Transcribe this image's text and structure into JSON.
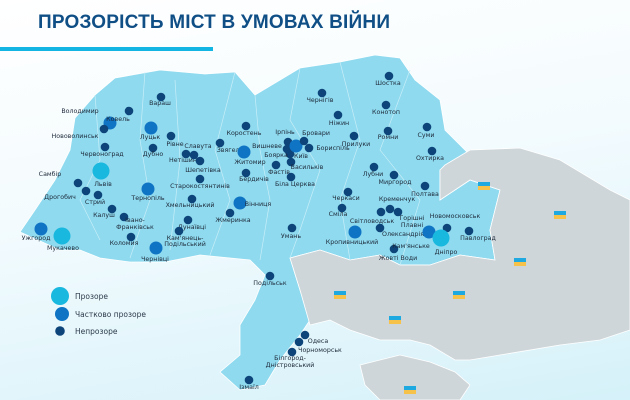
{
  "title": "ПРОЗОРІСТЬ МІСТ В УМОВАХ ВІЙНИ",
  "colors": {
    "transparent": "#19b8de",
    "partial": "#0f74c4",
    "opaque": "#0d4479",
    "territory": "#8fdaef",
    "occupied": "#cfd6d9",
    "title": "#0f4f86",
    "accent": "#13b6e2"
  },
  "legend": [
    {
      "status": "transparent",
      "label": "Прозоре"
    },
    {
      "status": "partial",
      "label": "Частково прозоре"
    },
    {
      "status": "opaque",
      "label": "Непрозоре"
    }
  ],
  "cities": [
    {
      "name": "Володимир",
      "status": "partial"
    },
    {
      "name": "Нововолинськ",
      "status": "opaque"
    },
    {
      "name": "Ковель",
      "status": "opaque"
    },
    {
      "name": "Вараш",
      "status": "opaque"
    },
    {
      "name": "Луцьк",
      "status": "partial"
    },
    {
      "name": "Рівне",
      "status": "opaque"
    },
    {
      "name": "Червоноград",
      "status": "opaque"
    },
    {
      "name": "Дубно",
      "status": "opaque"
    },
    {
      "name": "Нетішин",
      "status": "opaque"
    },
    {
      "name": "Славута",
      "status": "opaque"
    },
    {
      "name": "Шепетівка",
      "status": "opaque"
    },
    {
      "name": "Звягель",
      "status": "opaque"
    },
    {
      "name": "Старокостянтинів",
      "status": "opaque"
    },
    {
      "name": "Львів",
      "status": "transparent"
    },
    {
      "name": "Самбір",
      "status": "opaque"
    },
    {
      "name": "Дрогобич",
      "status": "opaque"
    },
    {
      "name": "Стрий",
      "status": "opaque"
    },
    {
      "name": "Тернопіль",
      "status": "partial"
    },
    {
      "name": "Калуш",
      "status": "opaque"
    },
    {
      "name": "Івано-Франківськ",
      "status": "opaque"
    },
    {
      "name": "Хмельницький",
      "status": "opaque"
    },
    {
      "name": "Дунаївці",
      "status": "opaque"
    },
    {
      "name": "Кам'янець-Подільський",
      "status": "opaque"
    },
    {
      "name": "Коломия",
      "status": "opaque"
    },
    {
      "name": "Чернівці",
      "status": "partial"
    },
    {
      "name": "Ужгород",
      "status": "partial"
    },
    {
      "name": "Мукачево",
      "status": "transparent"
    },
    {
      "name": "Жмеринка",
      "status": "opaque"
    },
    {
      "name": "Вінниця",
      "status": "partial"
    },
    {
      "name": "Бердичів",
      "status": "opaque"
    },
    {
      "name": "Житомир",
      "status": "partial"
    },
    {
      "name": "Коростень",
      "status": "opaque"
    },
    {
      "name": "Ірпінь",
      "status": "opaque"
    },
    {
      "name": "Вишневе",
      "status": "opaque"
    },
    {
      "name": "Боярка",
      "status": "opaque"
    },
    {
      "name": "Київ",
      "status": "partial"
    },
    {
      "name": "Бровари",
      "status": "opaque"
    },
    {
      "name": "Бориспіль",
      "status": "opaque"
    },
    {
      "name": "Фастів",
      "status": "opaque"
    },
    {
      "name": "Васильків",
      "status": "opaque"
    },
    {
      "name": "Біла Церква",
      "status": "opaque"
    },
    {
      "name": "Чернігів",
      "status": "opaque"
    },
    {
      "name": "Ніжин",
      "status": "opaque"
    },
    {
      "name": "Прилуки",
      "status": "opaque"
    },
    {
      "name": "Шостка",
      "status": "opaque"
    },
    {
      "name": "Конотоп",
      "status": "opaque"
    },
    {
      "name": "Ромни",
      "status": "opaque"
    },
    {
      "name": "Суми",
      "status": "opaque"
    },
    {
      "name": "Охтирка",
      "status": "opaque"
    },
    {
      "name": "Лубни",
      "status": "opaque"
    },
    {
      "name": "Миргород",
      "status": "opaque"
    },
    {
      "name": "Полтава",
      "status": "opaque"
    },
    {
      "name": "Черкаси",
      "status": "opaque"
    },
    {
      "name": "Світловодськ",
      "status": "opaque"
    },
    {
      "name": "Кременчук",
      "status": "opaque"
    },
    {
      "name": "Горішні Плавні",
      "status": "opaque"
    },
    {
      "name": "Сміла",
      "status": "opaque"
    },
    {
      "name": "Умань",
      "status": "opaque"
    },
    {
      "name": "Кропивницький",
      "status": "partial"
    },
    {
      "name": "Олександрія",
      "status": "opaque"
    },
    {
      "name": "Жовті Води",
      "status": "opaque"
    },
    {
      "name": "Новомосковськ",
      "status": "opaque"
    },
    {
      "name": "Кам'янське",
      "status": "partial"
    },
    {
      "name": "Дніпро",
      "status": "transparent"
    },
    {
      "name": "Павлоград",
      "status": "opaque"
    },
    {
      "name": "Подільськ",
      "status": "opaque"
    },
    {
      "name": "Одеса",
      "status": "opaque"
    },
    {
      "name": "Чорноморськ",
      "status": "opaque"
    },
    {
      "name": "Білгород-Дністровський",
      "status": "opaque"
    },
    {
      "name": "Ізмаїл",
      "status": "opaque"
    }
  ]
}
